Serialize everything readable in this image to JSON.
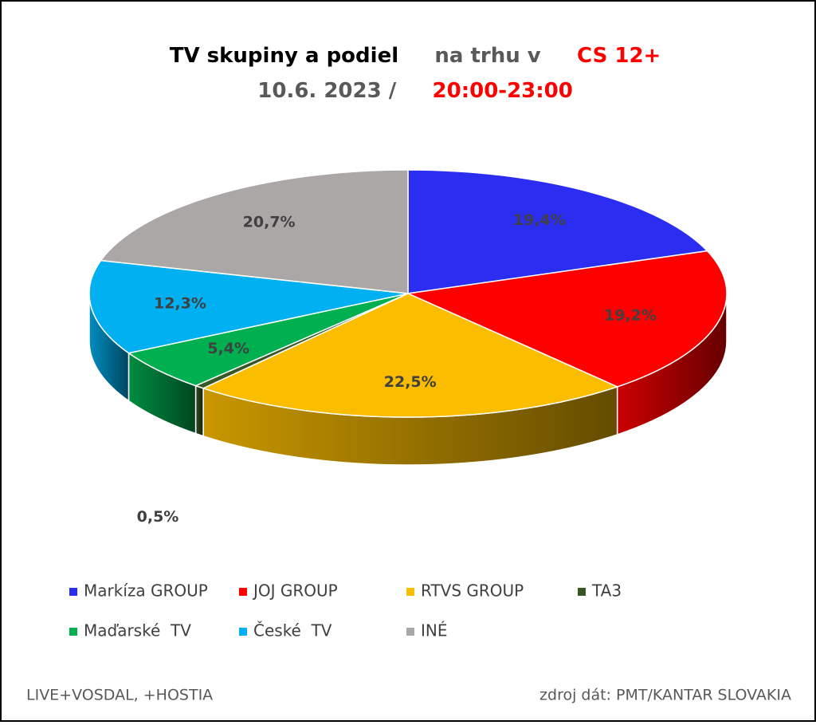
{
  "chart_data": {
    "type": "pie3d",
    "title": {
      "part1": "TV skupiny a podiel",
      "part2": "na trhu v",
      "part3": "CS 12+"
    },
    "subtitle": {
      "part1": "10.6. 2023 /",
      "part2": "20:00-23:00"
    },
    "categories": [
      "Markíza GROUP",
      "JOJ GROUP",
      "RTVS GROUP",
      "TA3",
      "Maďarské  TV",
      "České  TV",
      "INÉ"
    ],
    "values": [
      19.4,
      19.2,
      22.5,
      0.5,
      5.4,
      12.3,
      20.7
    ],
    "value_labels": [
      "19,4%",
      "19,2%",
      "22,5%",
      "0,5%",
      "5,4%",
      "12,3%",
      "20,7%"
    ],
    "colors": [
      "#2b2ef0",
      "#ff0000",
      "#fbbd00",
      "#385723",
      "#00b050",
      "#00b0f0",
      "#aba7a7"
    ],
    "legend": "bottom",
    "notes": {
      "left": "LIVE+VOSDAL, +HOSTIA",
      "right": "zdroj dát: PMT/KANTAR SLOVAKIA"
    }
  }
}
